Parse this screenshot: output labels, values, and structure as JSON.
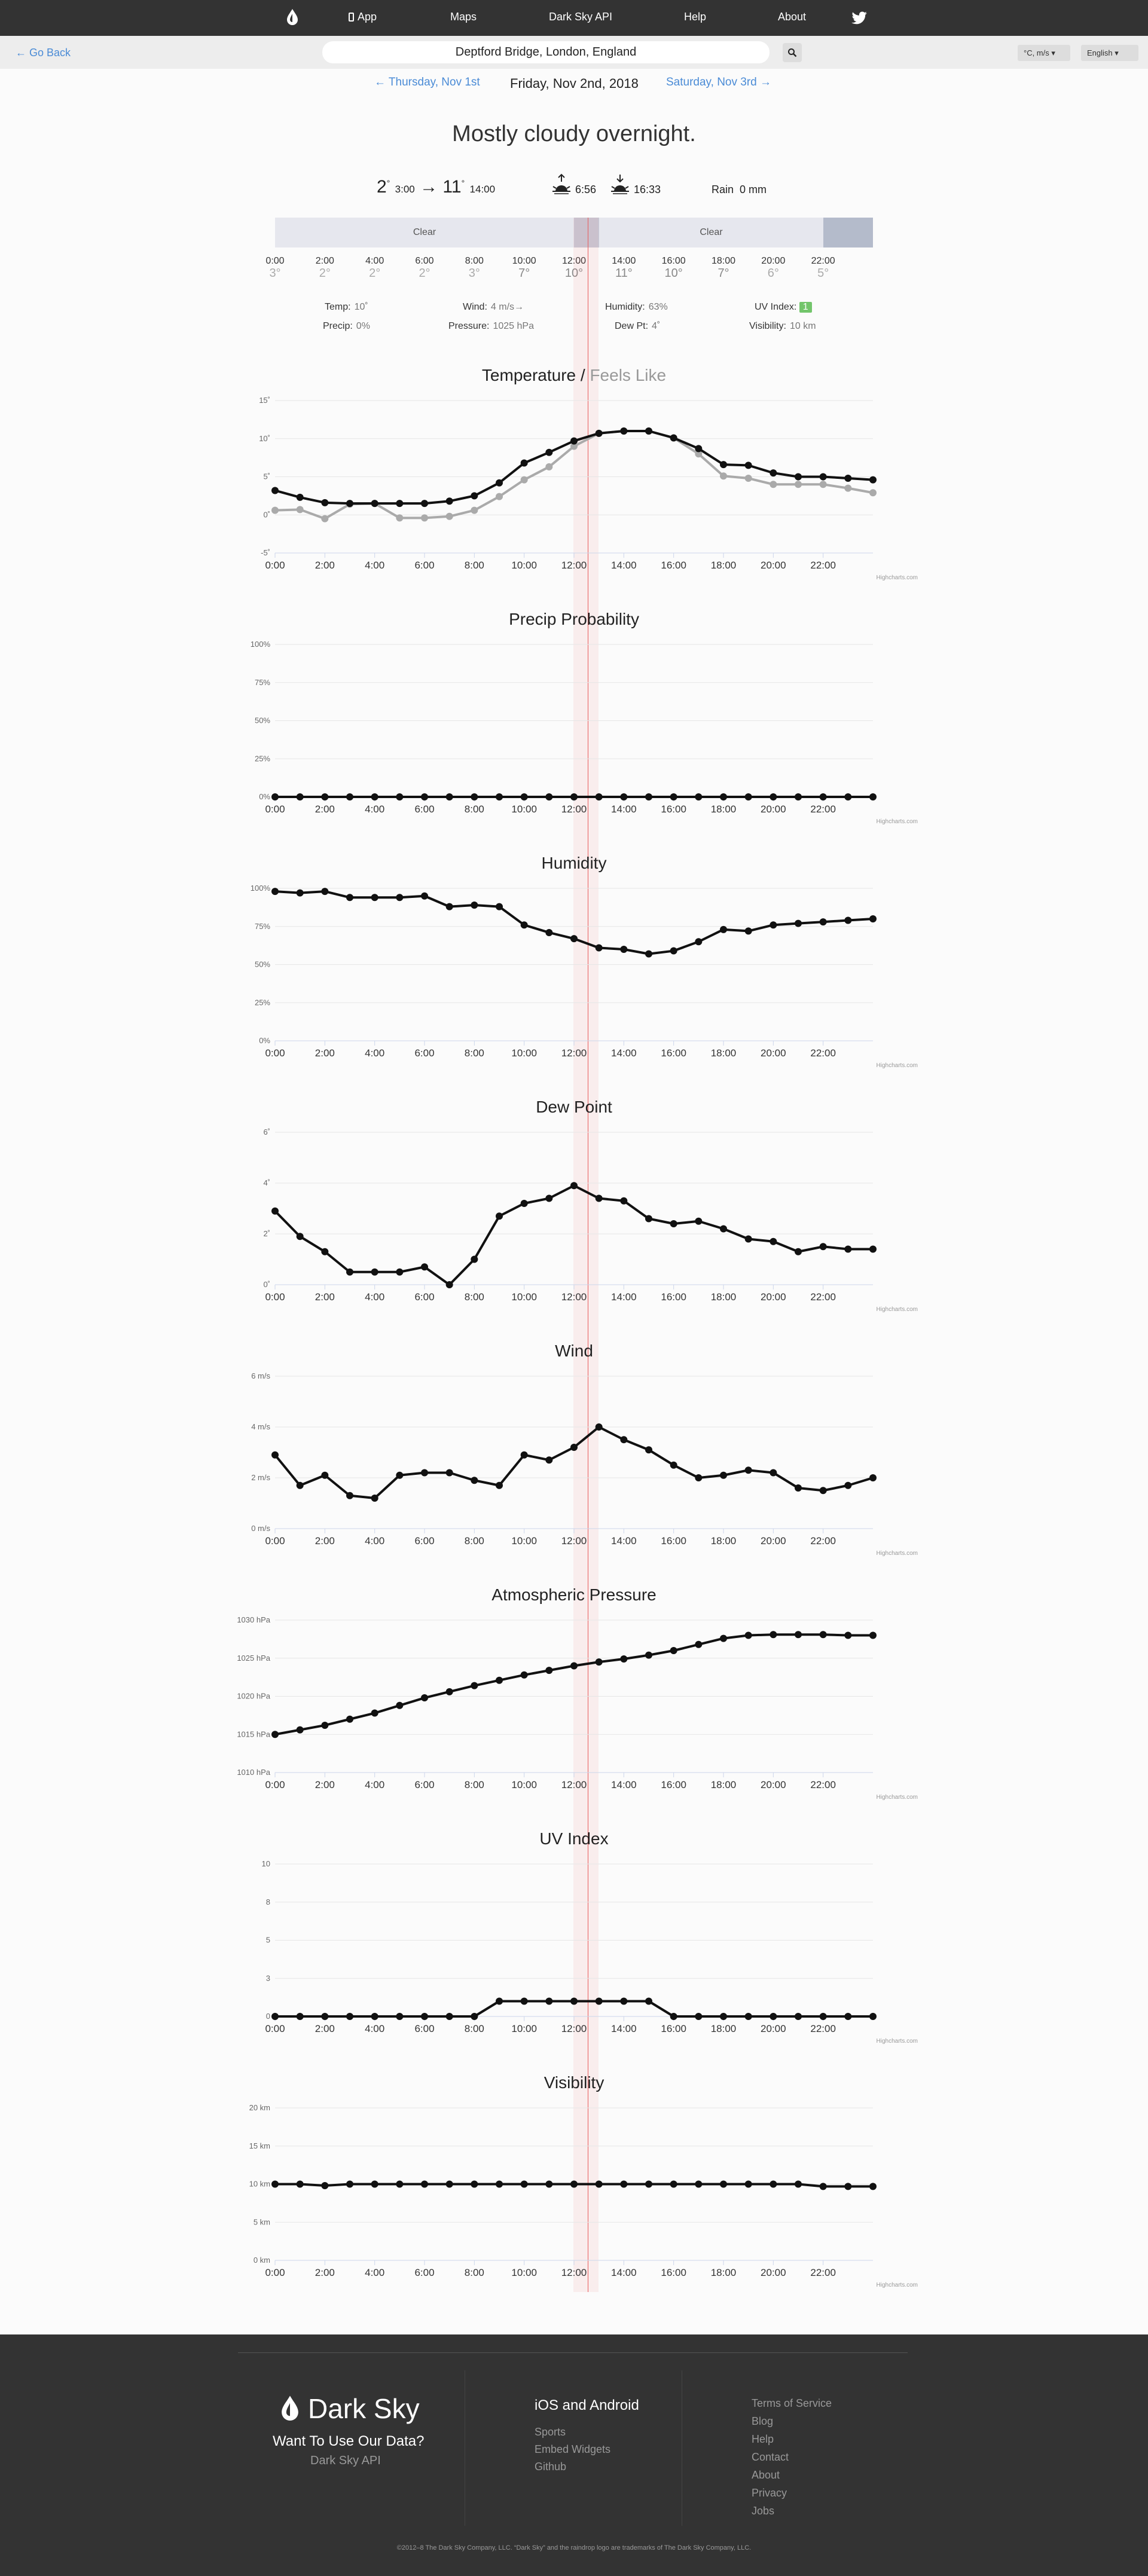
{
  "nav": {
    "items": [
      "App",
      "Maps",
      "Dark Sky API",
      "Help",
      "About"
    ]
  },
  "searchbar": {
    "go_back": "← Go Back",
    "location": "Deptford Bridge, London, England",
    "units": "°C, m/s",
    "language": "English"
  },
  "datenav": {
    "prev": "← Thursday, Nov 1st",
    "current": "Friday, Nov 2nd, 2018",
    "next": "Saturday, Nov 3rd →"
  },
  "summary": "Mostly cloudy overnight.",
  "temps": {
    "low": "2",
    "low_time": "3:00",
    "arrow": "→",
    "high": "11",
    "high_time": "14:00",
    "sunrise": "6:56",
    "sunset": "16:33",
    "rain_label": "Rain",
    "rain_value": "0 mm"
  },
  "timeline": {
    "segments": [
      "Clear",
      "Clear"
    ]
  },
  "hour_labels": [
    "0:00",
    "2:00",
    "4:00",
    "6:00",
    "8:00",
    "10:00",
    "12:00",
    "14:00",
    "16:00",
    "18:00",
    "20:00",
    "22:00"
  ],
  "hour_temps": [
    "3°",
    "2°",
    "2°",
    "2°",
    "3°",
    "7°",
    "10°",
    "11°",
    "10°",
    "7°",
    "6°",
    "5°"
  ],
  "stats": {
    "temp_label": "Temp:",
    "temp_value": "10˚",
    "wind_label": "Wind:",
    "wind_value": "4 m/s→",
    "humidity_label": "Humidity:",
    "humidity_value": "63%",
    "uv_label": "UV Index:",
    "uv_value": "1",
    "precip_label": "Precip:",
    "precip_value": "0%",
    "pressure_label": "Pressure:",
    "pressure_value": "1025 hPa",
    "dewpt_label": "Dew Pt:",
    "dewpt_value": "4˚",
    "visibility_label": "Visibility:",
    "visibility_value": "10 km"
  },
  "chart_titles": {
    "temperature": "Temperature",
    "slash": "/",
    "feels_like": "Feels Like",
    "precip": "Precip Probability",
    "humidity": "Humidity",
    "dewpoint": "Dew Point",
    "wind": "Wind",
    "pressure": "Atmospheric Pressure",
    "uv": "UV Index",
    "visibility": "Visibility"
  },
  "credit": "Highcharts.com",
  "chart_data": [
    {
      "type": "line",
      "title": "Temperature / Feels Like",
      "x": [
        0,
        1,
        2,
        3,
        4,
        5,
        6,
        7,
        8,
        9,
        10,
        11,
        12,
        13,
        14,
        15,
        16,
        17,
        18,
        19,
        20,
        21,
        22,
        23,
        24
      ],
      "series": [
        {
          "name": "Temperature",
          "color": "#111111",
          "values": [
            3.2,
            2.3,
            1.6,
            1.5,
            1.5,
            1.5,
            1.5,
            1.8,
            2.5,
            4.2,
            6.8,
            8.2,
            9.7,
            10.7,
            11.0,
            11.0,
            10.1,
            8.7,
            6.6,
            6.5,
            5.5,
            5.0,
            5.0,
            4.8,
            4.6
          ]
        },
        {
          "name": "Feels Like",
          "color": "#aaaaaa",
          "values": [
            0.6,
            0.7,
            -0.5,
            1.4,
            1.5,
            -0.4,
            -0.4,
            -0.2,
            0.6,
            2.4,
            4.6,
            6.3,
            9.0,
            10.7,
            11.0,
            11.0,
            10.1,
            8.0,
            5.1,
            4.8,
            4.0,
            4.0,
            4.0,
            3.5,
            2.9
          ]
        }
      ],
      "yticks": [
        "-5˚",
        "0˚",
        "5˚",
        "10˚",
        "15˚"
      ],
      "ylim": [
        -5,
        15
      ]
    },
    {
      "type": "line",
      "title": "Precip Probability",
      "x": [
        0,
        1,
        2,
        3,
        4,
        5,
        6,
        7,
        8,
        9,
        10,
        11,
        12,
        13,
        14,
        15,
        16,
        17,
        18,
        19,
        20,
        21,
        22,
        23,
        24
      ],
      "series": [
        {
          "values": [
            0,
            0,
            0,
            0,
            0,
            0,
            0,
            0,
            0,
            0,
            0,
            0,
            0,
            0,
            0,
            0,
            0,
            0,
            0,
            0,
            0,
            0,
            0,
            0,
            0
          ]
        }
      ],
      "yticks": [
        "0%",
        "25%",
        "50%",
        "75%",
        "100%"
      ],
      "ylim": [
        0,
        100
      ]
    },
    {
      "type": "line",
      "title": "Humidity",
      "x": [
        0,
        1,
        2,
        3,
        4,
        5,
        6,
        7,
        8,
        9,
        10,
        11,
        12,
        13,
        14,
        15,
        16,
        17,
        18,
        19,
        20,
        21,
        22,
        23,
        24
      ],
      "series": [
        {
          "values": [
            98,
            97,
            98,
            94,
            94,
            94,
            95,
            88,
            89,
            88,
            76,
            71,
            67,
            61,
            60,
            57,
            59,
            65,
            73,
            72,
            76,
            77,
            78,
            79,
            80
          ]
        }
      ],
      "yticks": [
        "0%",
        "25%",
        "50%",
        "75%",
        "100%"
      ],
      "ylim": [
        0,
        100
      ]
    },
    {
      "type": "line",
      "title": "Dew Point",
      "x": [
        0,
        1,
        2,
        3,
        4,
        5,
        6,
        7,
        8,
        9,
        10,
        11,
        12,
        13,
        14,
        15,
        16,
        17,
        18,
        19,
        20,
        21,
        22,
        23,
        24
      ],
      "series": [
        {
          "values": [
            2.9,
            1.9,
            1.3,
            0.5,
            0.5,
            0.5,
            0.7,
            0.0,
            1.0,
            2.7,
            3.2,
            3.4,
            3.9,
            3.4,
            3.3,
            2.6,
            2.4,
            2.5,
            2.2,
            1.8,
            1.7,
            1.3,
            1.5,
            1.4,
            1.4
          ]
        }
      ],
      "yticks": [
        "0˚",
        "2˚",
        "4˚",
        "6˚"
      ],
      "ylim": [
        0,
        6
      ]
    },
    {
      "type": "line",
      "title": "Wind",
      "x": [
        0,
        1,
        2,
        3,
        4,
        5,
        6,
        7,
        8,
        9,
        10,
        11,
        12,
        13,
        14,
        15,
        16,
        17,
        18,
        19,
        20,
        21,
        22,
        23,
        24
      ],
      "series": [
        {
          "values": [
            2.9,
            1.7,
            2.1,
            1.3,
            1.2,
            2.1,
            2.2,
            2.2,
            1.9,
            1.7,
            2.9,
            2.7,
            3.2,
            4.0,
            3.5,
            3.1,
            2.5,
            2.0,
            2.1,
            2.3,
            2.2,
            1.6,
            1.5,
            1.7,
            2.0
          ]
        }
      ],
      "yticks": [
        "0 m/s",
        "2 m/s",
        "4 m/s",
        "6 m/s"
      ],
      "ylim": [
        0,
        6
      ]
    },
    {
      "type": "line",
      "title": "Atmospheric Pressure",
      "x": [
        0,
        1,
        2,
        3,
        4,
        5,
        6,
        7,
        8,
        9,
        10,
        11,
        12,
        13,
        14,
        15,
        16,
        17,
        18,
        19,
        20,
        21,
        22,
        23,
        24
      ],
      "series": [
        {
          "values": [
            1015.0,
            1015.6,
            1016.2,
            1017.0,
            1017.8,
            1018.8,
            1019.8,
            1020.6,
            1021.4,
            1022.1,
            1022.8,
            1023.4,
            1024.0,
            1024.5,
            1024.9,
            1025.4,
            1026.0,
            1026.8,
            1027.6,
            1028.0,
            1028.1,
            1028.1,
            1028.1,
            1028.0,
            1028.0
          ]
        }
      ],
      "yticks": [
        "1010 hPa",
        "1015 hPa",
        "1020 hPa",
        "1025 hPa",
        "1030 hPa"
      ],
      "ylim": [
        1010,
        1030
      ]
    },
    {
      "type": "line",
      "title": "UV Index",
      "x": [
        0,
        1,
        2,
        3,
        4,
        5,
        6,
        7,
        8,
        9,
        10,
        11,
        12,
        13,
        14,
        15,
        16,
        17,
        18,
        19,
        20,
        21,
        22,
        23,
        24
      ],
      "series": [
        {
          "values": [
            0,
            0,
            0,
            0,
            0,
            0,
            0,
            0,
            0,
            1,
            1,
            1,
            1,
            1,
            1,
            1,
            0,
            0,
            0,
            0,
            0,
            0,
            0,
            0,
            0
          ]
        }
      ],
      "yticks": [
        "0",
        "3",
        "5",
        "8",
        "10"
      ],
      "ylim": [
        0,
        10
      ]
    },
    {
      "type": "line",
      "title": "Visibility",
      "x": [
        0,
        1,
        2,
        3,
        4,
        5,
        6,
        7,
        8,
        9,
        10,
        11,
        12,
        13,
        14,
        15,
        16,
        17,
        18,
        19,
        20,
        21,
        22,
        23,
        24
      ],
      "series": [
        {
          "values": [
            10,
            10,
            9.8,
            10,
            10,
            10,
            10,
            10,
            10,
            10,
            10,
            10,
            10,
            10,
            10,
            10,
            10,
            10,
            10,
            10,
            10,
            10,
            9.7,
            9.7,
            9.7
          ]
        }
      ],
      "yticks": [
        "0 km",
        "5 km",
        "10 km",
        "15 km",
        "20 km"
      ],
      "ylim": [
        0,
        20
      ]
    }
  ],
  "footer": {
    "brand": "Dark Sky",
    "want": "Want To Use Our Data?",
    "api": "Dark Sky API",
    "col2_head": "iOS and Android",
    "col2_links": [
      "Sports",
      "Embed Widgets",
      "Github"
    ],
    "col3_links": [
      "Terms of Service",
      "Blog",
      "Help",
      "Contact",
      "About",
      "Privacy",
      "Jobs"
    ],
    "copyright": "©2012–8 The Dark Sky Company, LLC. “Dark Sky” and the raindrop logo are trademarks of The Dark Sky Company, LLC."
  }
}
